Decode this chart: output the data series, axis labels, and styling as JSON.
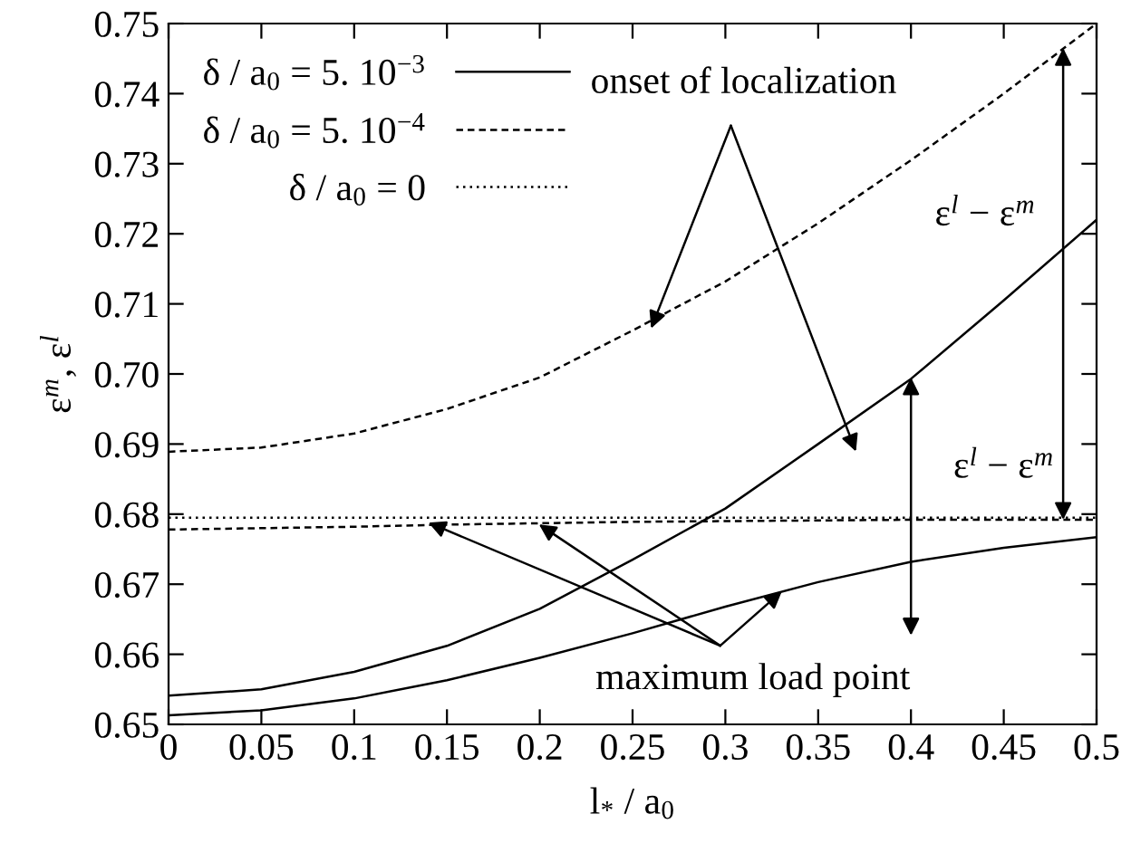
{
  "chart_data": {
    "type": "line",
    "xlabel": "l$_{*}$ / a$_{0}$",
    "ylabel": "ε$^{m}$, ε$^{l}$",
    "x": [
      0,
      0.05,
      0.1,
      0.15,
      0.2,
      0.25,
      0.3,
      0.35,
      0.4,
      0.45,
      0.5
    ],
    "series": [
      {
        "name": "δ / a$_{0}$ = 5. 10$^{−3}$",
        "color": "#000000",
        "line_style": "solid",
        "values": [
          0.6541,
          0.655,
          0.6575,
          0.6612,
          0.6665,
          0.6735,
          0.6808,
          0.69,
          0.6993,
          0.7105,
          0.722
        ]
      },
      {
        "name": "δ / a$_{0}$ = 5. 10$^{−4}$",
        "color": "#000000",
        "line_style": "dashed",
        "values": [
          0.6889,
          0.6895,
          0.6915,
          0.695,
          0.6995,
          0.7062,
          0.7132,
          0.7215,
          0.7305,
          0.74,
          0.75
        ]
      },
      {
        "name": "δ / a$_{0}$ = 0",
        "color": "#000000",
        "line_style": "dotted",
        "x": [
          0,
          0.5
        ],
        "values": [
          0.6795,
          0.6795
        ]
      },
      {
        "color": "#000000",
        "line_style": "solid",
        "values": [
          0.6513,
          0.652,
          0.6537,
          0.6563,
          0.6595,
          0.663,
          0.6668,
          0.6703,
          0.6732,
          0.6752,
          0.6767
        ]
      },
      {
        "color": "#000000",
        "line_style": "dashed",
        "values": [
          0.6778,
          0.678,
          0.6782,
          0.6785,
          0.6787,
          0.6789,
          0.679,
          0.6791,
          0.6792,
          0.6792,
          0.6792
        ]
      }
    ],
    "annotations": [
      {
        "text": "onset of localization",
        "x": 0.26,
        "y": 0.7065
      },
      {
        "text": "maximum load point",
        "x": 0.14,
        "y": 0.6788
      },
      "ε$^{l}$ − ε$^{m}$",
      "ε$^{l}$ − ε$^{m}$"
    ],
    "xlim": [
      0,
      0.5
    ],
    "ylim": [
      0.65,
      0.75
    ],
    "xticks": [
      0,
      0.05,
      0.1,
      0.15,
      0.2,
      0.25,
      0.3,
      0.35,
      0.4,
      0.45,
      0.5
    ],
    "yticks": [
      {
        "value": 0.65,
        "label": "0.65"
      },
      {
        "value": 0.66,
        "label": "0.66"
      },
      {
        "value": 0.67,
        "label": "0.67"
      },
      {
        "value": 0.68,
        "label": "0.68"
      },
      {
        "value": 0.69,
        "label": "0.69"
      },
      {
        "value": 0.7,
        "label": "0.70"
      },
      {
        "value": 0.71,
        "label": "0.71"
      },
      {
        "value": 0.72,
        "label": "0.72"
      },
      {
        "value": 0.73,
        "label": "0.73"
      },
      {
        "value": 0.74,
        "label": "0.74"
      },
      {
        "value": 0.75,
        "label": "0.75"
      }
    ],
    "grid": false,
    "legend": "top left"
  }
}
